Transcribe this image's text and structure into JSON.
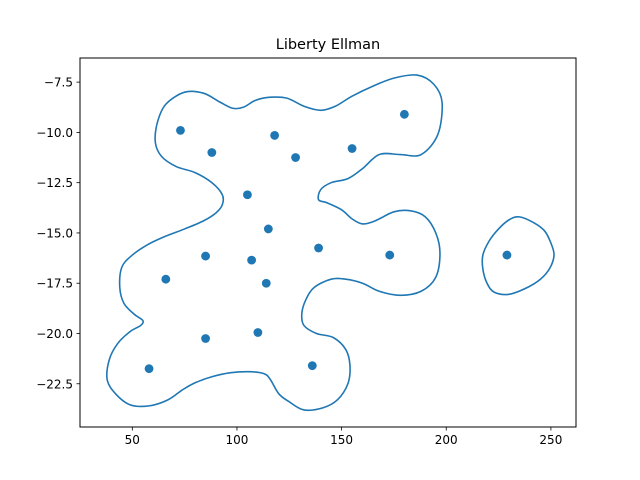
{
  "chart_data": {
    "type": "scatter",
    "title": "Liberty Ellman",
    "xlabel": "",
    "ylabel": "",
    "xlim": [
      25,
      262
    ],
    "ylim": [
      -24.65,
      -6.3
    ],
    "x_ticks": [
      50,
      100,
      150,
      200,
      250
    ],
    "y_ticks": [
      -7.5,
      -10.0,
      -12.5,
      -15.0,
      -17.5,
      -20.0,
      -22.5
    ],
    "x_tick_labels": [
      "50",
      "100",
      "150",
      "200",
      "250"
    ],
    "y_tick_labels": [
      "−7.5",
      "−10.0",
      "−12.5",
      "−15.0",
      "−17.5",
      "−20.0",
      "−22.5"
    ],
    "grid": false,
    "colors": {
      "series": "#1f77b4",
      "outline": "#1f77b4"
    },
    "points": [
      {
        "x": 73,
        "y": -9.9
      },
      {
        "x": 88,
        "y": -11.0
      },
      {
        "x": 118,
        "y": -10.15
      },
      {
        "x": 128,
        "y": -11.25
      },
      {
        "x": 155,
        "y": -10.8
      },
      {
        "x": 180,
        "y": -9.1
      },
      {
        "x": 105,
        "y": -13.1
      },
      {
        "x": 115,
        "y": -14.8
      },
      {
        "x": 139,
        "y": -15.75
      },
      {
        "x": 173,
        "y": -16.1
      },
      {
        "x": 229,
        "y": -16.1
      },
      {
        "x": 85,
        "y": -16.15
      },
      {
        "x": 107,
        "y": -16.35
      },
      {
        "x": 66,
        "y": -17.3
      },
      {
        "x": 114,
        "y": -17.5
      },
      {
        "x": 110,
        "y": -19.95
      },
      {
        "x": 85,
        "y": -20.25
      },
      {
        "x": 136,
        "y": -21.6
      },
      {
        "x": 58,
        "y": -21.75
      }
    ],
    "contours": [
      {
        "name": "outline-main",
        "points": [
          [
            75,
            -8.0
          ],
          [
            84,
            -8.05
          ],
          [
            92,
            -8.5
          ],
          [
            98,
            -8.8
          ],
          [
            103,
            -8.75
          ],
          [
            109,
            -8.4
          ],
          [
            116,
            -8.25
          ],
          [
            124,
            -8.3
          ],
          [
            132,
            -8.7
          ],
          [
            140,
            -8.9
          ],
          [
            147,
            -8.7
          ],
          [
            155,
            -8.2
          ],
          [
            165,
            -7.7
          ],
          [
            175,
            -7.3
          ],
          [
            186,
            -7.15
          ],
          [
            194,
            -7.6
          ],
          [
            198,
            -8.5
          ],
          [
            196,
            -10.1
          ],
          [
            188,
            -11.1
          ],
          [
            178,
            -11.1
          ],
          [
            168,
            -11.1
          ],
          [
            160,
            -11.8
          ],
          [
            153,
            -12.3
          ],
          [
            145,
            -12.5
          ],
          [
            140,
            -12.85
          ],
          [
            139,
            -13.35
          ],
          [
            143,
            -13.5
          ],
          [
            150,
            -13.85
          ],
          [
            155,
            -14.3
          ],
          [
            160,
            -14.55
          ],
          [
            166,
            -14.4
          ],
          [
            175,
            -13.95
          ],
          [
            183,
            -13.9
          ],
          [
            190,
            -14.2
          ],
          [
            195,
            -15.0
          ],
          [
            197,
            -16.0
          ],
          [
            195,
            -17.2
          ],
          [
            188,
            -17.9
          ],
          [
            178,
            -18.1
          ],
          [
            168,
            -17.9
          ],
          [
            160,
            -17.5
          ],
          [
            152,
            -17.3
          ],
          [
            145,
            -17.3
          ],
          [
            137,
            -17.7
          ],
          [
            133,
            -18.3
          ],
          [
            131,
            -19.0
          ],
          [
            132,
            -19.6
          ],
          [
            138,
            -20.0
          ],
          [
            146,
            -20.2
          ],
          [
            152,
            -20.8
          ],
          [
            154,
            -21.6
          ],
          [
            153,
            -22.5
          ],
          [
            148,
            -23.3
          ],
          [
            141,
            -23.7
          ],
          [
            132,
            -23.8
          ],
          [
            125,
            -23.4
          ],
          [
            120,
            -23.0
          ],
          [
            116,
            -22.3
          ],
          [
            113,
            -22.0
          ],
          [
            106,
            -21.9
          ],
          [
            97,
            -21.95
          ],
          [
            88,
            -22.15
          ],
          [
            80,
            -22.45
          ],
          [
            74,
            -22.8
          ],
          [
            67,
            -23.3
          ],
          [
            58,
            -23.6
          ],
          [
            49,
            -23.55
          ],
          [
            42,
            -23.0
          ],
          [
            38,
            -22.3
          ],
          [
            39,
            -21.3
          ],
          [
            43,
            -20.5
          ],
          [
            49,
            -19.9
          ],
          [
            54,
            -19.6
          ],
          [
            55,
            -19.35
          ],
          [
            51,
            -19.05
          ],
          [
            46,
            -18.5
          ],
          [
            44,
            -17.7
          ],
          [
            45,
            -16.7
          ],
          [
            50,
            -16.1
          ],
          [
            57,
            -15.6
          ],
          [
            65,
            -15.2
          ],
          [
            75,
            -14.8
          ],
          [
            84,
            -14.4
          ],
          [
            90,
            -14.0
          ],
          [
            93,
            -13.6
          ],
          [
            93,
            -13.1
          ],
          [
            88,
            -12.5
          ],
          [
            80,
            -12.0
          ],
          [
            71,
            -11.7
          ],
          [
            64,
            -11.2
          ],
          [
            61,
            -10.5
          ],
          [
            62,
            -9.5
          ],
          [
            66,
            -8.6
          ]
        ]
      },
      {
        "name": "outline-right",
        "points": [
          [
            235,
            -14.2
          ],
          [
            242,
            -14.5
          ],
          [
            247,
            -14.9
          ],
          [
            250,
            -15.5
          ],
          [
            251.5,
            -16.1
          ],
          [
            249.5,
            -16.75
          ],
          [
            245,
            -17.3
          ],
          [
            238,
            -17.75
          ],
          [
            230,
            -18.05
          ],
          [
            223,
            -17.95
          ],
          [
            219.5,
            -17.5
          ],
          [
            217.5,
            -16.8
          ],
          [
            217.5,
            -16.1
          ],
          [
            220.5,
            -15.4
          ],
          [
            225,
            -14.8
          ],
          [
            230,
            -14.35
          ]
        ]
      }
    ]
  }
}
